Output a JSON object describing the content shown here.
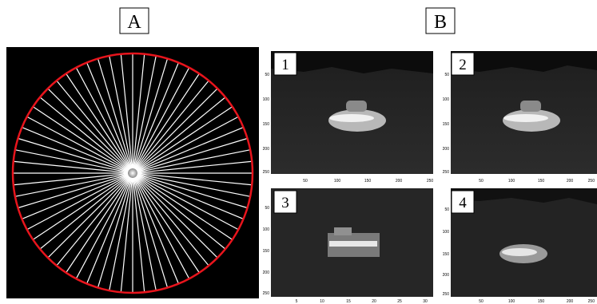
{
  "panel_a": {
    "label": "A",
    "spoke_count": 64
  },
  "panel_b": {
    "label": "B",
    "subfigures": [
      {
        "label": "1",
        "yticks": [
          "50",
          "100",
          "150",
          "200",
          "250"
        ],
        "xticks": [
          "50",
          "100",
          "150",
          "200",
          "250"
        ]
      },
      {
        "label": "2",
        "yticks": [
          "50",
          "100",
          "150",
          "200",
          "250"
        ],
        "xticks": [
          "50",
          "100",
          "150",
          "200",
          "250"
        ]
      },
      {
        "label": "3",
        "yticks": [
          "50",
          "100",
          "150",
          "200",
          "250"
        ],
        "xticks": [
          "5",
          "10",
          "15",
          "20",
          "25",
          "30"
        ]
      },
      {
        "label": "4",
        "yticks": [
          "50",
          "100",
          "150",
          "200",
          "250"
        ],
        "xticks": [
          "50",
          "100",
          "150",
          "200",
          "250"
        ]
      }
    ]
  },
  "colors": {
    "circle": "#e8141c",
    "spokes": "#ffffff",
    "background": "#000000"
  }
}
